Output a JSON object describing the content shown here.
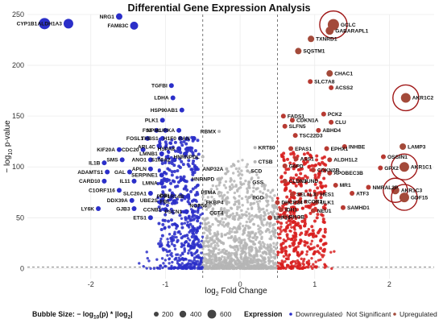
{
  "chart_data": {
    "type": "scatter",
    "title": "Differential Gene Expression Analysis",
    "xlabel_main": "log",
    "xlabel_sub": "2",
    "xlabel_rest": " Fold Change",
    "ylabel_main": "− log",
    "ylabel_sub": "10",
    "ylabel_rest": " p-value",
    "xlim": [
      -2.85,
      2.6
    ],
    "ylim": [
      -10,
      250
    ],
    "x_ticks": [
      -2,
      -1,
      0,
      1,
      2
    ],
    "y_ticks": [
      0,
      50,
      100,
      150,
      200,
      250
    ],
    "x_ticks_text": [
      "-2",
      "-1",
      "0",
      "1",
      "2"
    ],
    "y_ticks_text": [
      "0",
      "50",
      "100",
      "150",
      "200",
      "250"
    ],
    "fc_thresholds": [
      -0.5,
      0.5
    ],
    "p_threshold": 1.3,
    "grid": true,
    "colors": {
      "Downregulated": "#2b2fc9",
      "Not Significant": "#b5b5b5",
      "Upregulated": "#d81e1e",
      "highlight_ring": "#a01818"
    },
    "size_legend": {
      "title": "Bubble Size: − log10(p) * |log2|",
      "title_a": "Bubble Size: − log",
      "title_b": "10",
      "title_c": "(p) * |log",
      "title_d": "2",
      "title_e": "|",
      "values": [
        "200",
        "400",
        "600"
      ]
    },
    "color_legend": {
      "title": "Expression",
      "entries": [
        "Downregulated",
        "Not Significant",
        "Upregulated"
      ]
    },
    "labeled_points": [
      {
        "gene": "CYP1B1",
        "x": -2.62,
        "y": 241,
        "group": "Downregulated",
        "size": 7
      },
      {
        "gene": "ALDH1A3",
        "x": -2.3,
        "y": 241,
        "group": "Downregulated",
        "size": 6
      },
      {
        "gene": "NRG1",
        "x": -1.62,
        "y": 248,
        "group": "Downregulated",
        "size": 4
      },
      {
        "gene": "FAM83C",
        "x": -1.42,
        "y": 239,
        "group": "Downregulated",
        "size": 5
      },
      {
        "gene": "TGFBI",
        "x": -0.92,
        "y": 180,
        "group": "Downregulated",
        "size": 3
      },
      {
        "gene": "LDHA",
        "x": -0.9,
        "y": 168,
        "group": "Downregulated",
        "size": 3
      },
      {
        "gene": "HSP90AB1",
        "x": -0.78,
        "y": 156,
        "group": "Downregulated",
        "size": 3
      },
      {
        "gene": "PLK1",
        "x": -1.04,
        "y": 146,
        "group": "Downregulated",
        "size": 3
      },
      {
        "gene": "FST",
        "x": -1.12,
        "y": 136,
        "group": "Downregulated",
        "size": 3
      },
      {
        "gene": "NPM1",
        "x": -1.0,
        "y": 136,
        "group": "Downregulated",
        "size": 3
      },
      {
        "gene": "AURKA",
        "x": -0.82,
        "y": 136,
        "group": "Downregulated",
        "size": 3
      },
      {
        "gene": "FOSL1",
        "x": -1.24,
        "y": 128,
        "group": "Downregulated",
        "size": 3
      },
      {
        "gene": "THBS1",
        "x": -1.04,
        "y": 128,
        "group": "Downregulated",
        "size": 3
      },
      {
        "gene": "H1F0",
        "x": -0.8,
        "y": 128,
        "group": "Downregulated",
        "size": 3
      },
      {
        "gene": "RAN",
        "x": -0.62,
        "y": 128,
        "group": "Downregulated",
        "size": 3
      },
      {
        "gene": "ARL4C",
        "x": -1.08,
        "y": 120,
        "group": "Downregulated",
        "size": 3
      },
      {
        "gene": "HSPA8",
        "x": -0.82,
        "y": 118,
        "group": "Downregulated",
        "size": 3
      },
      {
        "gene": "KIF20A",
        "x": -1.62,
        "y": 117,
        "group": "Downregulated",
        "size": 3
      },
      {
        "gene": "CDC20",
        "x": -1.3,
        "y": 117,
        "group": "Downregulated",
        "size": 3
      },
      {
        "gene": "SMS",
        "x": -1.58,
        "y": 107,
        "group": "Downregulated",
        "size": 3
      },
      {
        "gene": "ANO1",
        "x": -1.2,
        "y": 107,
        "group": "Downregulated",
        "size": 3
      },
      {
        "gene": "LMNB1",
        "x": -1.05,
        "y": 113,
        "group": "Downregulated",
        "size": 3
      },
      {
        "gene": "S100A2",
        "x": -0.88,
        "y": 107,
        "group": "Downregulated",
        "size": 3
      },
      {
        "gene": "IL1B",
        "x": -1.82,
        "y": 104,
        "group": "Downregulated",
        "size": 3
      },
      {
        "gene": "APLN",
        "x": -1.2,
        "y": 98,
        "group": "Downregulated",
        "size": 3
      },
      {
        "gene": "ADAMTS1",
        "x": -1.78,
        "y": 95,
        "group": "Downregulated",
        "size": 3
      },
      {
        "gene": "GAL",
        "x": -1.48,
        "y": 95,
        "group": "Downregulated",
        "size": 3
      },
      {
        "gene": "SERPINE1",
        "x": -1.05,
        "y": 92,
        "group": "Downregulated",
        "size": 3
      },
      {
        "gene": "CARD10",
        "x": -1.82,
        "y": 86,
        "group": "Downregulated",
        "size": 3
      },
      {
        "gene": "IL11",
        "x": -1.42,
        "y": 86,
        "group": "Downregulated",
        "size": 3
      },
      {
        "gene": "LMNA",
        "x": -1.05,
        "y": 84,
        "group": "Downregulated",
        "size": 3
      },
      {
        "gene": "C1ORF116",
        "x": -1.62,
        "y": 77,
        "group": "Downregulated",
        "size": 3
      },
      {
        "gene": "SLC20A1",
        "x": -1.2,
        "y": 74,
        "group": "Downregulated",
        "size": 3
      },
      {
        "gene": "DBI",
        "x": -0.9,
        "y": 72,
        "group": "Downregulated",
        "size": 3
      },
      {
        "gene": "PPP1R14B",
        "x": -0.7,
        "y": 71,
        "group": "Downregulated",
        "size": 3
      },
      {
        "gene": "DDX39A",
        "x": -1.45,
        "y": 67,
        "group": "Downregulated",
        "size": 3
      },
      {
        "gene": "UBE2S",
        "x": -1.05,
        "y": 67,
        "group": "Downregulated",
        "size": 3
      },
      {
        "gene": "FBL",
        "x": -0.88,
        "y": 66,
        "group": "Downregulated",
        "size": 3
      },
      {
        "gene": "LY6K",
        "x": -1.9,
        "y": 59,
        "group": "Downregulated",
        "size": 3
      },
      {
        "gene": "GJB3",
        "x": -1.42,
        "y": 59,
        "group": "Downregulated",
        "size": 3
      },
      {
        "gene": "CCNB1",
        "x": -1.0,
        "y": 58,
        "group": "Downregulated",
        "size": 3
      },
      {
        "gene": "ETS1",
        "x": -1.2,
        "y": 50,
        "group": "Downregulated",
        "size": 3
      },
      {
        "gene": "PSCN1",
        "x": -0.72,
        "y": 56,
        "group": "Downregulated",
        "size": 3
      },
      {
        "gene": "RBMX",
        "x": -0.28,
        "y": 135,
        "group": "Not Significant",
        "size": 2
      },
      {
        "gene": "HNRNPDL",
        "x": -0.5,
        "y": 110,
        "group": "Not Significant",
        "size": 2
      },
      {
        "gene": "ANP32A",
        "x": -0.18,
        "y": 98,
        "group": "Not Significant",
        "size": 2
      },
      {
        "gene": "HNRNPD",
        "x": -0.3,
        "y": 88,
        "group": "Not Significant",
        "size": 2
      },
      {
        "gene": "PTMA",
        "x": -0.28,
        "y": 75,
        "group": "Not Significant",
        "size": 2
      },
      {
        "gene": "FKBP4",
        "x": -0.18,
        "y": 65,
        "group": "Not Significant",
        "size": 2
      },
      {
        "gene": "NOP56",
        "x": -0.4,
        "y": 62,
        "group": "Not Significant",
        "size": 2
      },
      {
        "gene": "CCT4",
        "x": -0.18,
        "y": 55,
        "group": "Not Significant",
        "size": 2
      },
      {
        "gene": "KRT80",
        "x": 0.2,
        "y": 119,
        "group": "Not Significant",
        "size": 2
      },
      {
        "gene": "CTSB",
        "x": 0.2,
        "y": 105,
        "group": "Not Significant",
        "size": 2
      },
      {
        "gene": "SCD",
        "x": 0.1,
        "y": 96,
        "group": "Not Significant",
        "size": 2
      },
      {
        "gene": "GSS",
        "x": 0.12,
        "y": 85,
        "group": "Not Significant",
        "size": 2
      },
      {
        "gene": "PGD",
        "x": 0.12,
        "y": 70,
        "group": "Not Significant",
        "size": 2
      },
      {
        "gene": "GCLC",
        "x": 1.25,
        "y": 240,
        "group": "Upregulated",
        "size": 7,
        "ring": true
      },
      {
        "gene": "GABARAPL1",
        "x": 1.2,
        "y": 234,
        "group": "Upregulated",
        "size": 5
      },
      {
        "gene": "TXNRD1",
        "x": 0.95,
        "y": 226,
        "group": "Upregulated",
        "size": 4
      },
      {
        "gene": "SQSTM1",
        "x": 0.78,
        "y": 214,
        "group": "Upregulated",
        "size": 4
      },
      {
        "gene": "CHAC1",
        "x": 1.2,
        "y": 192,
        "group": "Upregulated",
        "size": 4
      },
      {
        "gene": "SLC7A8",
        "x": 0.94,
        "y": 184,
        "group": "Upregulated",
        "size": 3
      },
      {
        "gene": "ACSS2",
        "x": 1.22,
        "y": 178,
        "group": "Upregulated",
        "size": 3
      },
      {
        "gene": "AKR1C2",
        "x": 2.22,
        "y": 168,
        "group": "Upregulated",
        "size": 6,
        "ring": true
      },
      {
        "gene": "FADS1",
        "x": 0.58,
        "y": 150,
        "group": "Upregulated",
        "size": 3
      },
      {
        "gene": "CDKN1A",
        "x": 0.7,
        "y": 146,
        "group": "Upregulated",
        "size": 3
      },
      {
        "gene": "PCK2",
        "x": 1.12,
        "y": 152,
        "group": "Upregulated",
        "size": 3
      },
      {
        "gene": "CLU",
        "x": 1.22,
        "y": 144,
        "group": "Upregulated",
        "size": 3
      },
      {
        "gene": "SLFN5",
        "x": 0.6,
        "y": 140,
        "group": "Upregulated",
        "size": 3
      },
      {
        "gene": "ABHD4",
        "x": 1.05,
        "y": 136,
        "group": "Upregulated",
        "size": 3
      },
      {
        "gene": "TSC22D3",
        "x": 0.74,
        "y": 131,
        "group": "Upregulated",
        "size": 3
      },
      {
        "gene": "LAMP3",
        "x": 2.18,
        "y": 120,
        "group": "Upregulated",
        "size": 4
      },
      {
        "gene": "EPAS1",
        "x": 0.68,
        "y": 118,
        "group": "Upregulated",
        "size": 3
      },
      {
        "gene": "EPHX1",
        "x": 1.16,
        "y": 118,
        "group": "Upregulated",
        "size": 3
      },
      {
        "gene": "INHBE",
        "x": 1.4,
        "y": 120,
        "group": "Upregulated",
        "size": 3
      },
      {
        "gene": "OSGIN1",
        "x": 1.92,
        "y": 110,
        "group": "Upregulated",
        "size": 3
      },
      {
        "gene": "AKR1C1",
        "x": 2.2,
        "y": 100,
        "group": "Upregulated",
        "size": 6,
        "ring": true
      },
      {
        "gene": "ASS1",
        "x": 0.75,
        "y": 108,
        "group": "Upregulated",
        "size": 3
      },
      {
        "gene": "ALDH1L2",
        "x": 1.2,
        "y": 107,
        "group": "Upregulated",
        "size": 3
      },
      {
        "gene": "GPX2",
        "x": 1.88,
        "y": 99,
        "group": "Upregulated",
        "size": 3
      },
      {
        "gene": "G6PD",
        "x": 0.6,
        "y": 101,
        "group": "Upregulated",
        "size": 3
      },
      {
        "gene": "CDKN2B",
        "x": 0.98,
        "y": 97,
        "group": "Upregulated",
        "size": 3
      },
      {
        "gene": "APOBEC3B",
        "x": 1.2,
        "y": 94,
        "group": "Upregulated",
        "size": 3
      },
      {
        "gene": "CLDN1",
        "x": 0.6,
        "y": 86,
        "group": "Upregulated",
        "size": 3
      },
      {
        "gene": "JUND",
        "x": 0.8,
        "y": 86,
        "group": "Upregulated",
        "size": 3
      },
      {
        "gene": "MR1",
        "x": 1.28,
        "y": 82,
        "group": "Upregulated",
        "size": 3
      },
      {
        "gene": "NMRAL2P",
        "x": 1.72,
        "y": 80,
        "group": "Upregulated",
        "size": 3
      },
      {
        "gene": "SEL1L3",
        "x": 0.7,
        "y": 73,
        "group": "Upregulated",
        "size": 3
      },
      {
        "gene": "HES1",
        "x": 1.02,
        "y": 73,
        "group": "Upregulated",
        "size": 3
      },
      {
        "gene": "ATF3",
        "x": 1.5,
        "y": 74,
        "group": "Upregulated",
        "size": 3
      },
      {
        "gene": "AKR1C3",
        "x": 2.08,
        "y": 77,
        "group": "Upregulated",
        "size": 5,
        "ring": true
      },
      {
        "gene": "DHCR24",
        "x": 0.5,
        "y": 65,
        "group": "Upregulated",
        "size": 3
      },
      {
        "gene": "RCOR3",
        "x": 0.8,
        "y": 66,
        "group": "Upregulated",
        "size": 3
      },
      {
        "gene": "ULK1",
        "x": 1.02,
        "y": 65,
        "group": "Upregulated",
        "size": 3
      },
      {
        "gene": "GDF15",
        "x": 2.2,
        "y": 70,
        "group": "Upregulated",
        "size": 6,
        "ring": true
      },
      {
        "gene": "IDH1",
        "x": 0.55,
        "y": 58,
        "group": "Upregulated",
        "size": 3
      },
      {
        "gene": "NEU1",
        "x": 0.98,
        "y": 57,
        "group": "Upregulated",
        "size": 3
      },
      {
        "gene": "SAMHD1",
        "x": 1.38,
        "y": 60,
        "group": "Upregulated",
        "size": 3
      },
      {
        "gene": "LRP10",
        "x": 0.4,
        "y": 50,
        "group": "Upregulated",
        "size": 3
      },
      {
        "gene": "RHOB",
        "x": 0.6,
        "y": 51,
        "group": "Upregulated",
        "size": 3
      }
    ]
  }
}
